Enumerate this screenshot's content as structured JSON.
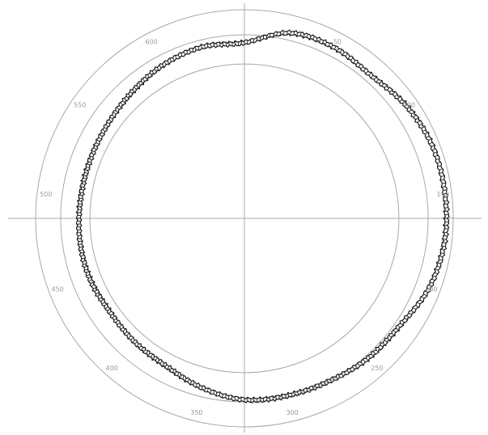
{
  "chart_data": {
    "type": "line",
    "coordinate_system": "polar",
    "angular_axis": {
      "unit_range": [
        0,
        650
      ],
      "zero_at": "top",
      "direction": "clockwise",
      "tick_labels": [
        "50",
        "100",
        "150",
        "200",
        "250",
        "300",
        "350",
        "400",
        "450",
        "500",
        "550",
        "600"
      ],
      "tick_values": [
        50,
        100,
        150,
        200,
        250,
        300,
        350,
        400,
        450,
        500,
        550,
        600
      ]
    },
    "radial_axis": {
      "reference_circles": [
        0.74,
        0.88,
        1.0
      ],
      "tick_labels_shown": false
    },
    "grid": true,
    "legend": "none",
    "series": [
      {
        "marker": "hatched-band",
        "x": [
          0,
          25,
          50,
          75,
          100,
          125,
          150,
          175,
          200,
          225,
          250,
          275,
          300,
          325,
          350,
          375,
          400,
          425,
          450,
          475,
          500,
          525,
          550,
          575,
          600,
          625,
          650
        ],
        "y": [
          0.842,
          0.915,
          0.925,
          0.915,
          0.945,
          0.965,
          0.968,
          0.965,
          0.945,
          0.905,
          0.895,
          0.88,
          0.875,
          0.87,
          0.838,
          0.802,
          0.792,
          0.785,
          0.795,
          0.795,
          0.79,
          0.79,
          0.795,
          0.81,
          0.832,
          0.846,
          0.842
        ]
      }
    ],
    "colors": {
      "grid": "#a8a8a8",
      "series": "#1a1a1a",
      "tick_label": "#9a9a9a"
    }
  }
}
